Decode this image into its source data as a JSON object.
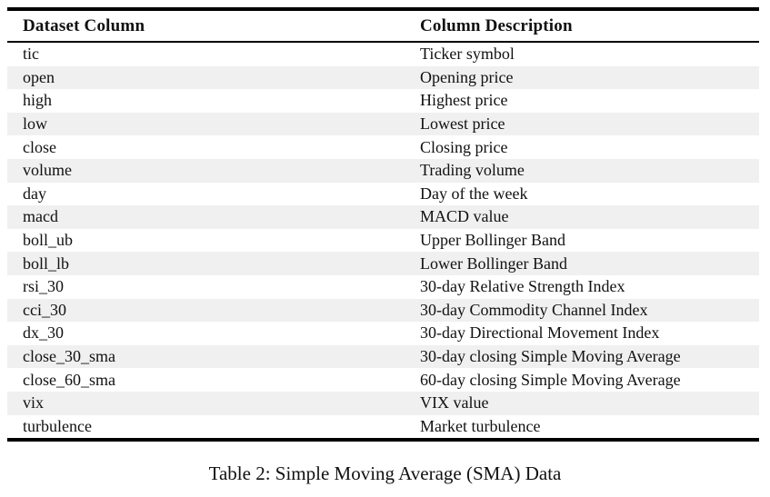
{
  "colors": {
    "background": "#ffffff",
    "rule": "#000000",
    "zebra_stripe": "#f0f0f0",
    "text": "#111111"
  },
  "table": {
    "headers": [
      "Dataset Column",
      "Column Description"
    ],
    "rows": [
      {
        "name": "tic",
        "desc": "Ticker symbol"
      },
      {
        "name": "open",
        "desc": "Opening price"
      },
      {
        "name": "high",
        "desc": "Highest price"
      },
      {
        "name": "low",
        "desc": "Lowest price"
      },
      {
        "name": "close",
        "desc": "Closing price"
      },
      {
        "name": "volume",
        "desc": "Trading volume"
      },
      {
        "name": "day",
        "desc": "Day of the week"
      },
      {
        "name": "macd",
        "desc": "MACD value"
      },
      {
        "name": "boll_ub",
        "desc": "Upper Bollinger Band"
      },
      {
        "name": "boll_lb",
        "desc": "Lower Bollinger Band"
      },
      {
        "name": "rsi_30",
        "desc": "30-day Relative Strength Index"
      },
      {
        "name": "cci_30",
        "desc": "30-day Commodity Channel Index"
      },
      {
        "name": "dx_30",
        "desc": "30-day Directional Movement Index"
      },
      {
        "name": "close_30_sma",
        "desc": "30-day closing Simple Moving Average"
      },
      {
        "name": "close_60_sma",
        "desc": "60-day closing Simple Moving Average"
      },
      {
        "name": "vix",
        "desc": "VIX value"
      },
      {
        "name": "turbulence",
        "desc": "Market turbulence"
      }
    ]
  },
  "caption": "Table 2: Simple Moving Average (SMA) Data"
}
